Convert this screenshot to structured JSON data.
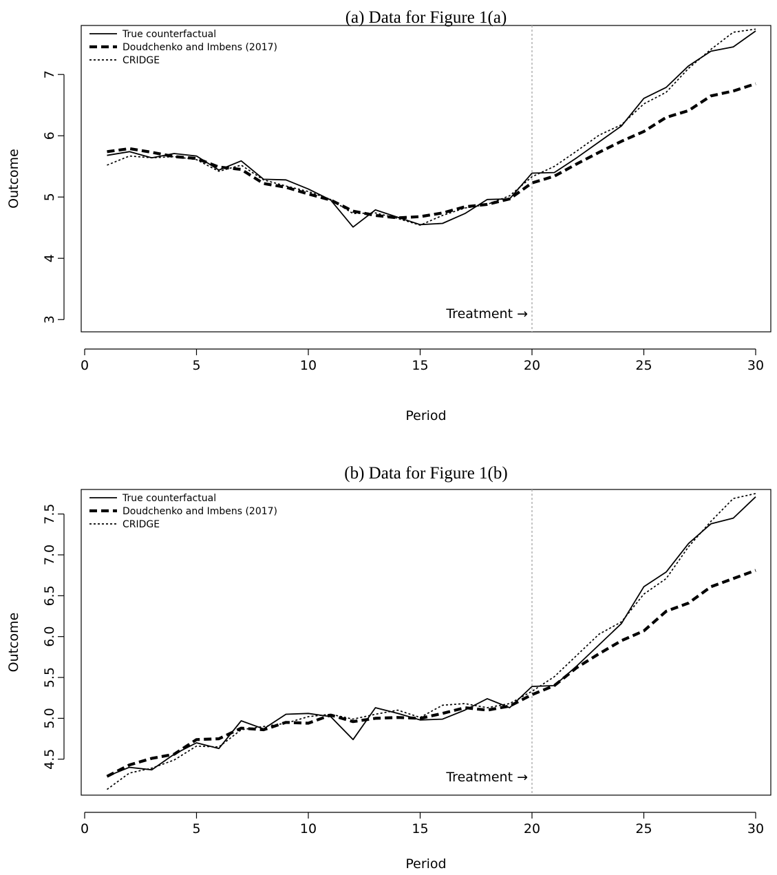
{
  "chart_data": [
    {
      "type": "line",
      "title": "(a) Data for Figure 1(a)",
      "xlabel": "Period",
      "ylabel": "Outcome",
      "xlim": [
        0,
        30
      ],
      "ylim": [
        2.8,
        7.8
      ],
      "xticks": [
        0,
        5,
        10,
        15,
        20,
        25,
        30
      ],
      "yticks": [
        3,
        4,
        5,
        6,
        7
      ],
      "ytick_labels": [
        "3",
        "4",
        "5",
        "6",
        "7"
      ],
      "treatment_x": 20,
      "annotation": "Treatment →",
      "legend_position": "top-left",
      "x": [
        1,
        2,
        3,
        4,
        5,
        6,
        7,
        8,
        9,
        10,
        11,
        12,
        13,
        14,
        15,
        16,
        17,
        18,
        19,
        20,
        21,
        22,
        23,
        24,
        25,
        26,
        27,
        28,
        29,
        30
      ],
      "series": [
        {
          "name": "True counterfactual",
          "style": "solid",
          "values": [
            5.68,
            5.74,
            5.64,
            5.71,
            5.67,
            5.44,
            5.59,
            5.29,
            5.28,
            5.13,
            4.95,
            4.51,
            4.79,
            4.67,
            4.55,
            4.57,
            4.73,
            4.96,
            4.97,
            5.39,
            5.4,
            5.64,
            5.9,
            6.16,
            6.61,
            6.79,
            7.14,
            7.38,
            7.45,
            7.71
          ]
        },
        {
          "name": "Doudchenko and Imbens (2017)",
          "style": "dashed",
          "values": [
            5.74,
            5.79,
            5.73,
            5.66,
            5.63,
            5.49,
            5.45,
            5.22,
            5.16,
            5.05,
            4.95,
            4.77,
            4.7,
            4.66,
            4.68,
            4.74,
            4.84,
            4.88,
            4.97,
            5.23,
            5.34,
            5.54,
            5.73,
            5.91,
            6.07,
            6.3,
            6.41,
            6.65,
            6.73,
            6.85
          ]
        },
        {
          "name": "CRIDGE",
          "style": "dotted",
          "values": [
            5.52,
            5.67,
            5.64,
            5.66,
            5.61,
            5.42,
            5.52,
            5.28,
            5.18,
            5.09,
            4.96,
            4.73,
            4.74,
            4.65,
            4.54,
            4.7,
            4.82,
            4.88,
            5.02,
            5.33,
            5.5,
            5.75,
            6.01,
            6.18,
            6.52,
            6.71,
            7.1,
            7.41,
            7.69,
            7.74
          ]
        }
      ]
    },
    {
      "type": "line",
      "title": "(b) Data for Figure 1(b)",
      "xlabel": "Period",
      "ylabel": "Outcome",
      "xlim": [
        0,
        30
      ],
      "ylim": [
        4.06,
        7.8
      ],
      "xticks": [
        0,
        5,
        10,
        15,
        20,
        25,
        30
      ],
      "yticks": [
        4.5,
        5.0,
        5.5,
        6.0,
        6.5,
        7.0,
        7.5
      ],
      "ytick_labels": [
        "4.5",
        "5.0",
        "5.5",
        "6.0",
        "6.5",
        "7.0",
        "7.5"
      ],
      "treatment_x": 20,
      "annotation": "Treatment →",
      "legend_position": "top-left",
      "x": [
        1,
        2,
        3,
        4,
        5,
        6,
        7,
        8,
        9,
        10,
        11,
        12,
        13,
        14,
        15,
        16,
        17,
        18,
        19,
        20,
        21,
        22,
        23,
        24,
        25,
        26,
        27,
        28,
        29,
        30
      ],
      "series": [
        {
          "name": "True counterfactual",
          "style": "solid",
          "values": [
            4.29,
            4.4,
            4.37,
            4.56,
            4.7,
            4.63,
            4.97,
            4.87,
            5.05,
            5.06,
            5.02,
            4.74,
            5.13,
            5.06,
            4.98,
            4.99,
            5.1,
            5.24,
            5.13,
            5.39,
            5.4,
            5.64,
            5.9,
            6.16,
            6.61,
            6.79,
            7.14,
            7.38,
            7.45,
            7.71
          ]
        },
        {
          "name": "Doudchenko and Imbens (2017)",
          "style": "dashed",
          "values": [
            4.29,
            4.43,
            4.51,
            4.56,
            4.74,
            4.75,
            4.88,
            4.86,
            4.95,
            4.94,
            5.04,
            4.96,
            5.0,
            5.01,
            5.0,
            5.06,
            5.13,
            5.1,
            5.15,
            5.29,
            5.4,
            5.62,
            5.79,
            5.95,
            6.07,
            6.31,
            6.41,
            6.61,
            6.71,
            6.81
          ]
        },
        {
          "name": "CRIDGE",
          "style": "dotted",
          "values": [
            4.13,
            4.33,
            4.39,
            4.49,
            4.66,
            4.65,
            4.86,
            4.9,
            4.94,
            5.02,
            5.05,
            4.99,
            5.05,
            5.1,
            5.01,
            5.16,
            5.18,
            5.13,
            5.18,
            5.33,
            5.51,
            5.77,
            6.03,
            6.18,
            6.52,
            6.71,
            7.1,
            7.41,
            7.69,
            7.75
          ]
        }
      ]
    }
  ]
}
